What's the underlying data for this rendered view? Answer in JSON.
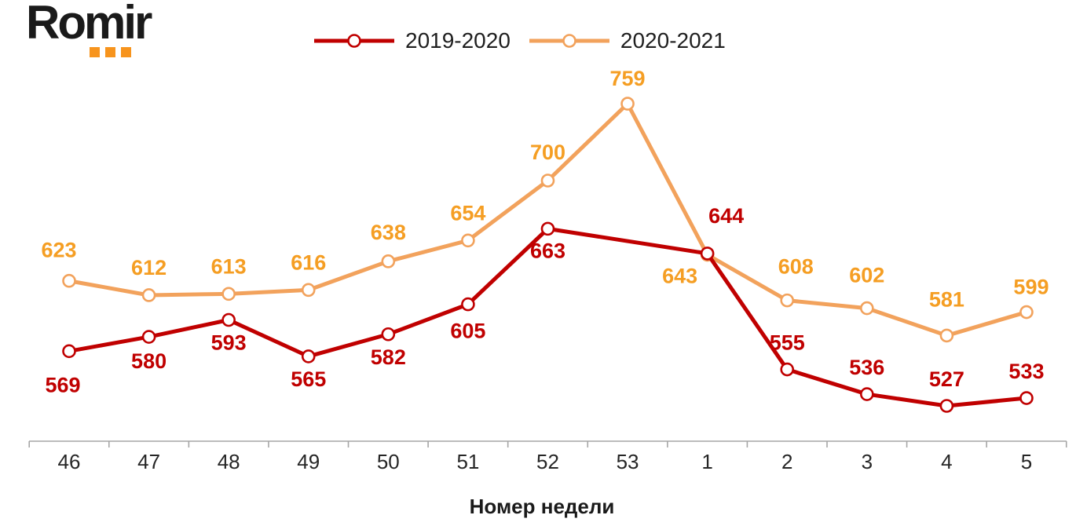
{
  "logo": {
    "text": "Romir",
    "accent_color": "#F7941D"
  },
  "legend": [
    {
      "label": "2019-2020",
      "color": "#C00000"
    },
    {
      "label": "2020-2021",
      "color": "#F2A25C"
    }
  ],
  "axis": {
    "xlabel": "Номер недели",
    "line_color": "#A6A6A6",
    "tick_text_color": "#262626"
  },
  "chart_data": {
    "type": "line",
    "categories": [
      "46",
      "47",
      "48",
      "49",
      "50",
      "51",
      "52",
      "53",
      "1",
      "2",
      "3",
      "4",
      "5"
    ],
    "xlabel": "Номер недели",
    "grid": false,
    "legend_position": "top-center",
    "marker": "open-circle",
    "ylim_implied": [
      500,
      790
    ],
    "series": [
      {
        "name": "2020-2021",
        "color": "#F2A25C",
        "label_color": "#F59E23",
        "values": [
          623,
          612,
          613,
          616,
          638,
          654,
          700,
          759,
          643,
          608,
          602,
          581,
          599
        ],
        "label_offsets": [
          [
            -13,
            -39
          ],
          [
            0,
            -35
          ],
          [
            0,
            -35
          ],
          [
            0,
            -35
          ],
          [
            0,
            -37
          ],
          [
            0,
            -35
          ],
          [
            0,
            -36
          ],
          [
            0,
            -32
          ],
          [
            -35,
            27
          ],
          [
            11,
            -43
          ],
          [
            0,
            -42
          ],
          [
            0,
            -46
          ],
          [
            6,
            -32
          ]
        ]
      },
      {
        "name": "2019-2020",
        "color": "#C00000",
        "label_color": "#C00000",
        "values": [
          569,
          580,
          593,
          565,
          582,
          605,
          663,
          null,
          644,
          555,
          536,
          527,
          533
        ],
        "label_offsets": [
          [
            -8,
            43
          ],
          [
            0,
            31
          ],
          [
            0,
            29
          ],
          [
            0,
            29
          ],
          [
            0,
            29
          ],
          [
            0,
            34
          ],
          [
            0,
            28
          ],
          [
            0,
            0
          ],
          [
            24,
            -48
          ],
          [
            0,
            -34
          ],
          [
            0,
            -34
          ],
          [
            0,
            -34
          ],
          [
            0,
            -34
          ]
        ]
      }
    ]
  }
}
